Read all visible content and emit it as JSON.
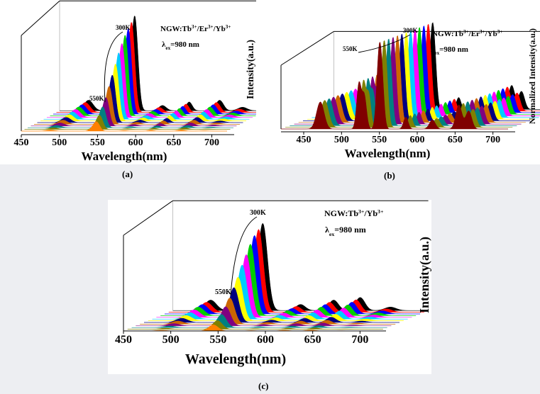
{
  "captions": {
    "a": "(a)",
    "b": "(b)",
    "c": "(c)"
  },
  "chart_data": [
    {
      "id": "a",
      "type": "area",
      "title": "NGW:Tb3+/Er3+/Yb3+",
      "title_parts": [
        "NGW:Tb",
        "3+",
        "/Er",
        "3+",
        "/Yb",
        "3+"
      ],
      "excitation": "λex=980 nm",
      "excitation_parts": [
        "λ",
        "ex",
        "=980 nm"
      ],
      "xlabel": "Wavelength(nm)",
      "ylabel": "",
      "xticks": [
        450,
        500,
        550,
        600,
        650,
        700
      ],
      "xlim": [
        450,
        720
      ],
      "annotations": {
        "high": "300K",
        "low": "550K"
      },
      "series_colors": [
        "#000000",
        "#ff0000",
        "#0000ff",
        "#00cc00",
        "#ff00ff",
        "#00ccff",
        "#ffff00",
        "#000080",
        "#cc6600",
        "#800080",
        "#008080",
        "#808000",
        "#ff8000"
      ],
      "series_count": 13,
      "peaks": [
        {
          "center": 488,
          "width": 6,
          "amplitude": 0.12
        },
        {
          "center": 543,
          "width": 4,
          "amplitude": 0.25
        },
        {
          "center": 549,
          "width": 4,
          "amplitude": 1.0
        },
        {
          "center": 585,
          "width": 5,
          "amplitude": 0.06
        },
        {
          "center": 620,
          "width": 4,
          "amplitude": 0.1
        },
        {
          "center": 660,
          "width": 5,
          "amplitude": 0.12
        },
        {
          "center": 690,
          "width": 6,
          "amplitude": 0.04
        }
      ],
      "amplitude_trend": [
        1.0,
        0.95,
        0.9,
        0.85,
        0.78,
        0.7,
        0.6,
        0.5,
        0.4,
        0.3,
        0.22,
        0.15,
        0.1
      ]
    },
    {
      "id": "b",
      "type": "area",
      "title": "NGW:Tb3+/Er3+/Yb3+",
      "title_parts": [
        "NGW:Tb",
        "3+",
        "/Er",
        "3+",
        "/Yb",
        "3+"
      ],
      "excitation": "λex=980 nm",
      "excitation_parts": [
        "λ",
        "ex",
        "=980 nm"
      ],
      "xlabel": "Wavelength(nm)",
      "ylabel_left": "Intensity(a.u.)",
      "ylabel_right": "Normalized Intensity(a.u.)",
      "xticks": [
        450,
        500,
        550,
        600,
        650,
        700
      ],
      "xlim": [
        420,
        720
      ],
      "annotations": {
        "high": "300K",
        "low": "550K"
      },
      "series_colors": [
        "#000000",
        "#ff0000",
        "#0000ff",
        "#00cc00",
        "#ff00ff",
        "#00ccff",
        "#ffff00",
        "#000080",
        "#cc6600",
        "#800080",
        "#008080",
        "#808000",
        "#800000"
      ],
      "series_count": 13,
      "peaks": [
        {
          "center": 472,
          "width": 5,
          "amplitude": 0.45
        },
        {
          "center": 523,
          "width": 3,
          "amplitude": 0.75
        },
        {
          "center": 530,
          "width": 3,
          "amplitude": 0.55
        },
        {
          "center": 549,
          "width": 3,
          "amplitude": 1.0
        },
        {
          "center": 553,
          "width": 3,
          "amplitude": 0.8
        },
        {
          "center": 585,
          "width": 3,
          "amplitude": 0.2
        },
        {
          "center": 620,
          "width": 4,
          "amplitude": 0.15
        },
        {
          "center": 655,
          "width": 4,
          "amplitude": 0.4
        },
        {
          "center": 668,
          "width": 4,
          "amplitude": 0.3
        }
      ],
      "amplitude_trend": [
        1.0,
        1.0,
        1.0,
        1.0,
        1.0,
        1.0,
        1.0,
        1.0,
        1.0,
        1.0,
        1.0,
        1.0,
        1.0
      ]
    },
    {
      "id": "c",
      "type": "area",
      "title": "NGW:Tb3+/Yb3+",
      "title_parts": [
        "NGW:Tb",
        "3+",
        "/Yb",
        "3+"
      ],
      "excitation": "λex=980 nm",
      "excitation_parts": [
        "λ",
        "ex",
        "=980 nm"
      ],
      "xlabel": "Wavelength(nm)",
      "ylabel": "Intensity(a.u.)",
      "xticks": [
        450,
        500,
        550,
        600,
        650,
        700
      ],
      "xlim": [
        450,
        720
      ],
      "annotations": {
        "high": "300K",
        "low": "550K"
      },
      "series_colors": [
        "#000000",
        "#ff0000",
        "#0000ff",
        "#00cc00",
        "#ff00ff",
        "#00ccff",
        "#ffff00",
        "#000080",
        "#cc6600",
        "#800080",
        "#008080",
        "#808000",
        "#ff8000"
      ],
      "series_count": 13,
      "peaks": [
        {
          "center": 490,
          "width": 6,
          "amplitude": 0.12
        },
        {
          "center": 545,
          "width": 5,
          "amplitude": 1.0
        },
        {
          "center": 585,
          "width": 5,
          "amplitude": 0.07
        },
        {
          "center": 620,
          "width": 5,
          "amplitude": 0.12
        },
        {
          "center": 648,
          "width": 5,
          "amplitude": 0.15
        },
        {
          "center": 680,
          "width": 6,
          "amplitude": 0.04
        }
      ],
      "amplitude_trend": [
        1.0,
        0.95,
        0.9,
        0.82,
        0.72,
        0.62,
        0.5,
        0.4,
        0.3,
        0.22,
        0.15,
        0.1,
        0.07
      ]
    }
  ]
}
